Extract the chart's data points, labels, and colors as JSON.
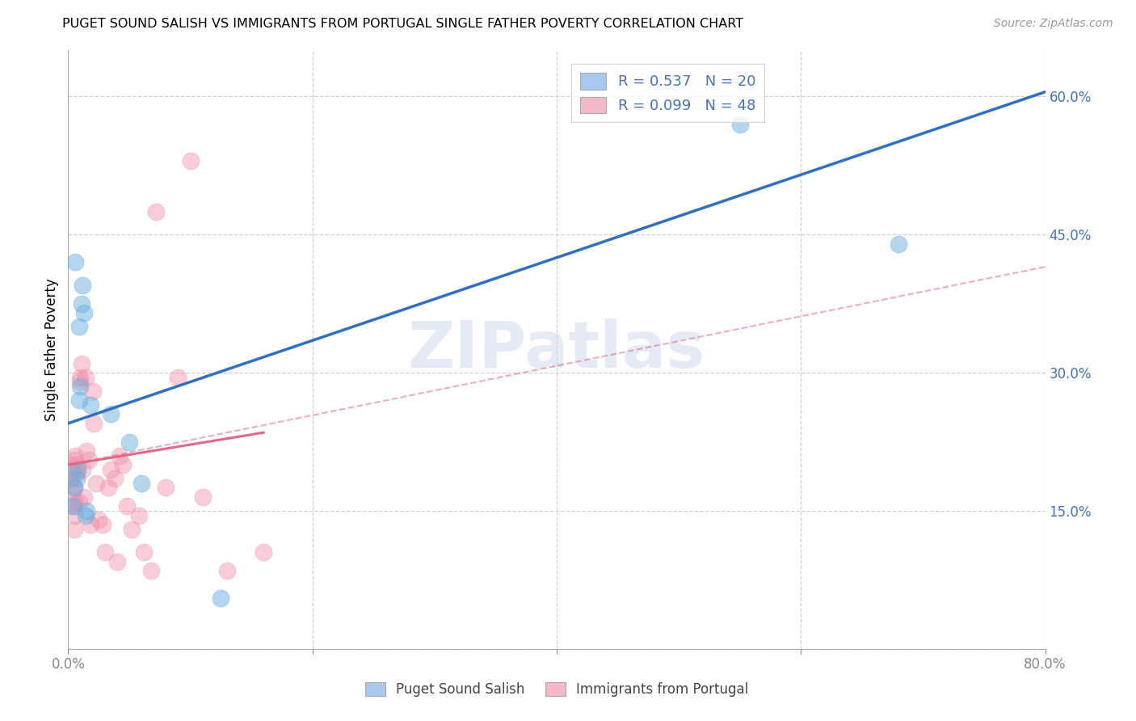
{
  "title": "PUGET SOUND SALISH VS IMMIGRANTS FROM PORTUGAL SINGLE FATHER POVERTY CORRELATION CHART",
  "source": "Source: ZipAtlas.com",
  "ylabel": "Single Father Poverty",
  "xlim": [
    0.0,
    0.8
  ],
  "ylim": [
    0.0,
    0.65
  ],
  "xticks": [
    0.0,
    0.2,
    0.4,
    0.6,
    0.8
  ],
  "xticklabels": [
    "0.0%",
    "",
    "",
    "",
    "80.0%"
  ],
  "yticks": [
    0.0,
    0.15,
    0.3,
    0.45,
    0.6
  ],
  "yticklabels": [
    "",
    "15.0%",
    "30.0%",
    "45.0%",
    "60.0%"
  ],
  "legend_labels": [
    "R = 0.537   N = 20",
    "R = 0.099   N = 48"
  ],
  "legend_colors": [
    "#a8c8f0",
    "#f4b8c8"
  ],
  "bottom_legend_labels": [
    "Puget Sound Salish",
    "Immigrants from Portugal"
  ],
  "watermark": "ZIPatlas",
  "blue_color": "#6aaee0",
  "pink_color": "#f090a8",
  "blue_line_color": "#3070c0",
  "pink_line_color": "#e06888",
  "axis_label_color": "#4472c4",
  "grid_color": "#d0d0d0",
  "blue_scatter_x": [
    0.004,
    0.005,
    0.006,
    0.007,
    0.008,
    0.009,
    0.009,
    0.01,
    0.011,
    0.012,
    0.013,
    0.014,
    0.015,
    0.018,
    0.035,
    0.05,
    0.06,
    0.125,
    0.55,
    0.68
  ],
  "blue_scatter_y": [
    0.155,
    0.175,
    0.42,
    0.185,
    0.195,
    0.27,
    0.35,
    0.285,
    0.375,
    0.395,
    0.365,
    0.145,
    0.15,
    0.265,
    0.255,
    0.225,
    0.18,
    0.055,
    0.57,
    0.44
  ],
  "pink_scatter_x": [
    0.002,
    0.003,
    0.003,
    0.004,
    0.004,
    0.005,
    0.005,
    0.005,
    0.005,
    0.006,
    0.006,
    0.006,
    0.007,
    0.008,
    0.009,
    0.01,
    0.01,
    0.011,
    0.012,
    0.013,
    0.014,
    0.015,
    0.017,
    0.018,
    0.02,
    0.021,
    0.023,
    0.025,
    0.028,
    0.03,
    0.033,
    0.035,
    0.038,
    0.04,
    0.042,
    0.045,
    0.048,
    0.052,
    0.058,
    0.062,
    0.068,
    0.072,
    0.08,
    0.09,
    0.1,
    0.11,
    0.13,
    0.16
  ],
  "pink_scatter_y": [
    0.185,
    0.185,
    0.2,
    0.17,
    0.195,
    0.13,
    0.155,
    0.175,
    0.205,
    0.145,
    0.16,
    0.21,
    0.19,
    0.2,
    0.16,
    0.295,
    0.29,
    0.31,
    0.195,
    0.165,
    0.295,
    0.215,
    0.205,
    0.135,
    0.28,
    0.245,
    0.18,
    0.14,
    0.135,
    0.105,
    0.175,
    0.195,
    0.185,
    0.095,
    0.21,
    0.2,
    0.155,
    0.13,
    0.145,
    0.105,
    0.085,
    0.475,
    0.175,
    0.295,
    0.53,
    0.165,
    0.085,
    0.105
  ],
  "blue_line_x": [
    0.0,
    0.8
  ],
  "blue_line_y": [
    0.245,
    0.605
  ],
  "pink_solid_line_x": [
    0.0,
    0.16
  ],
  "pink_solid_line_y": [
    0.2,
    0.235
  ],
  "pink_dash_line_x": [
    0.0,
    0.8
  ],
  "pink_dash_line_y": [
    0.2,
    0.415
  ]
}
